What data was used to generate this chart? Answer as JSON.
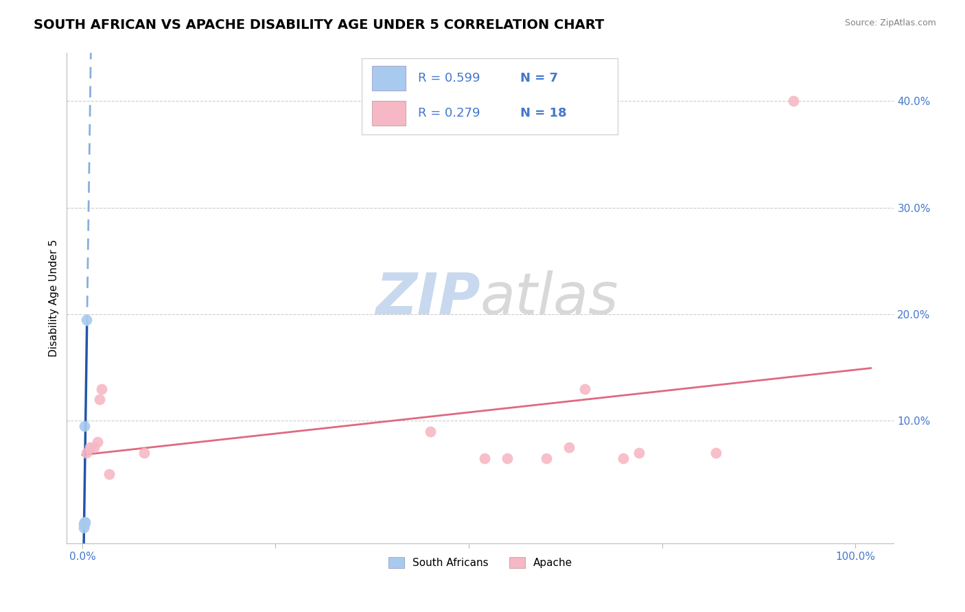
{
  "title": "SOUTH AFRICAN VS APACHE DISABILITY AGE UNDER 5 CORRELATION CHART",
  "source": "Source: ZipAtlas.com",
  "ylabel": "Disability Age Under 5",
  "xlim": [
    -0.02,
    1.05
  ],
  "ylim": [
    -0.015,
    0.445
  ],
  "xticks": [
    0.0,
    0.25,
    0.5,
    0.75,
    1.0
  ],
  "xticklabels": [
    "0.0%",
    "",
    "",
    "",
    "100.0%"
  ],
  "yticks": [
    0.0,
    0.1,
    0.2,
    0.3,
    0.4
  ],
  "yticklabels": [
    "",
    "10.0%",
    "20.0%",
    "30.0%",
    "40.0%"
  ],
  "south_african_x": [
    0.002,
    0.002,
    0.003,
    0.003,
    0.003,
    0.004,
    0.005
  ],
  "south_african_y": [
    0.0,
    0.003,
    0.003,
    0.005,
    0.095,
    0.005,
    0.195
  ],
  "apache_x": [
    0.005,
    0.01,
    0.015,
    0.02,
    0.022,
    0.025,
    0.035,
    0.08,
    0.45,
    0.52,
    0.55,
    0.6,
    0.63,
    0.65,
    0.7,
    0.72,
    0.82,
    0.92
  ],
  "apache_y": [
    0.07,
    0.075,
    0.075,
    0.08,
    0.12,
    0.13,
    0.05,
    0.07,
    0.09,
    0.065,
    0.065,
    0.065,
    0.075,
    0.13,
    0.065,
    0.07,
    0.07,
    0.4
  ],
  "sa_R": 0.599,
  "sa_N": 7,
  "apache_R": 0.279,
  "apache_N": 18,
  "sa_color": "#A8CAEE",
  "apache_color": "#F5B8C4",
  "sa_line_color": "#2255AA",
  "sa_dashed_color": "#88AEDD",
  "apache_line_color": "#E06880",
  "background_color": "#FFFFFF",
  "grid_color": "#CCCCCC",
  "axis_color": "#BBBBBB",
  "label_color": "#4477CC",
  "title_fontsize": 14,
  "axis_label_fontsize": 11,
  "tick_fontsize": 11,
  "legend_fontsize": 13,
  "marker_size": 130,
  "watermark_zip_color": "#C8D8EE",
  "watermark_atlas_color": "#D8D8D8"
}
